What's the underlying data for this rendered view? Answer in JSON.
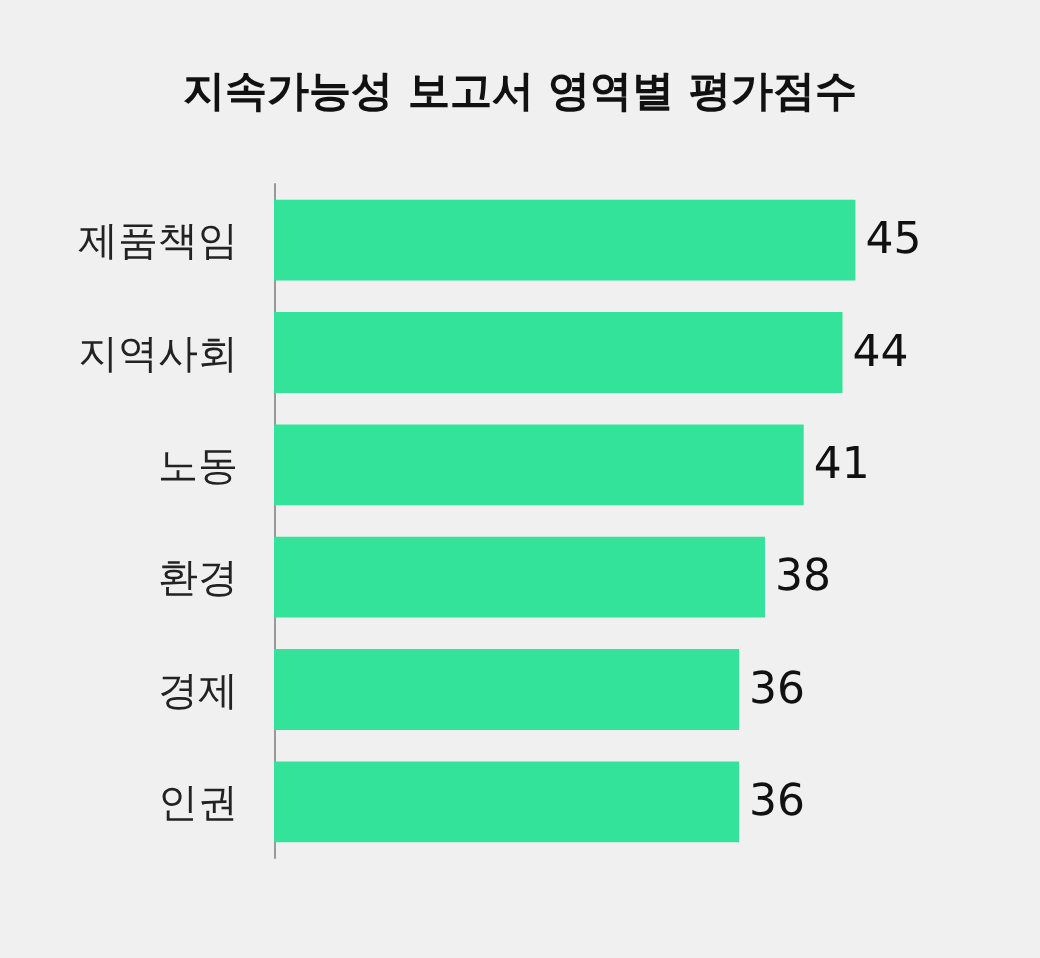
{
  "chart_data": {
    "type": "bar",
    "title": "지속가능성 보고서 영역별 평가점수",
    "orientation": "horizontal",
    "categories": [
      "제품책임",
      "지역사회",
      "노동",
      "환경",
      "경제",
      "인권"
    ],
    "values": [
      45,
      44,
      41,
      38,
      36,
      36
    ],
    "color": "#33e39a",
    "data_labels": true
  }
}
